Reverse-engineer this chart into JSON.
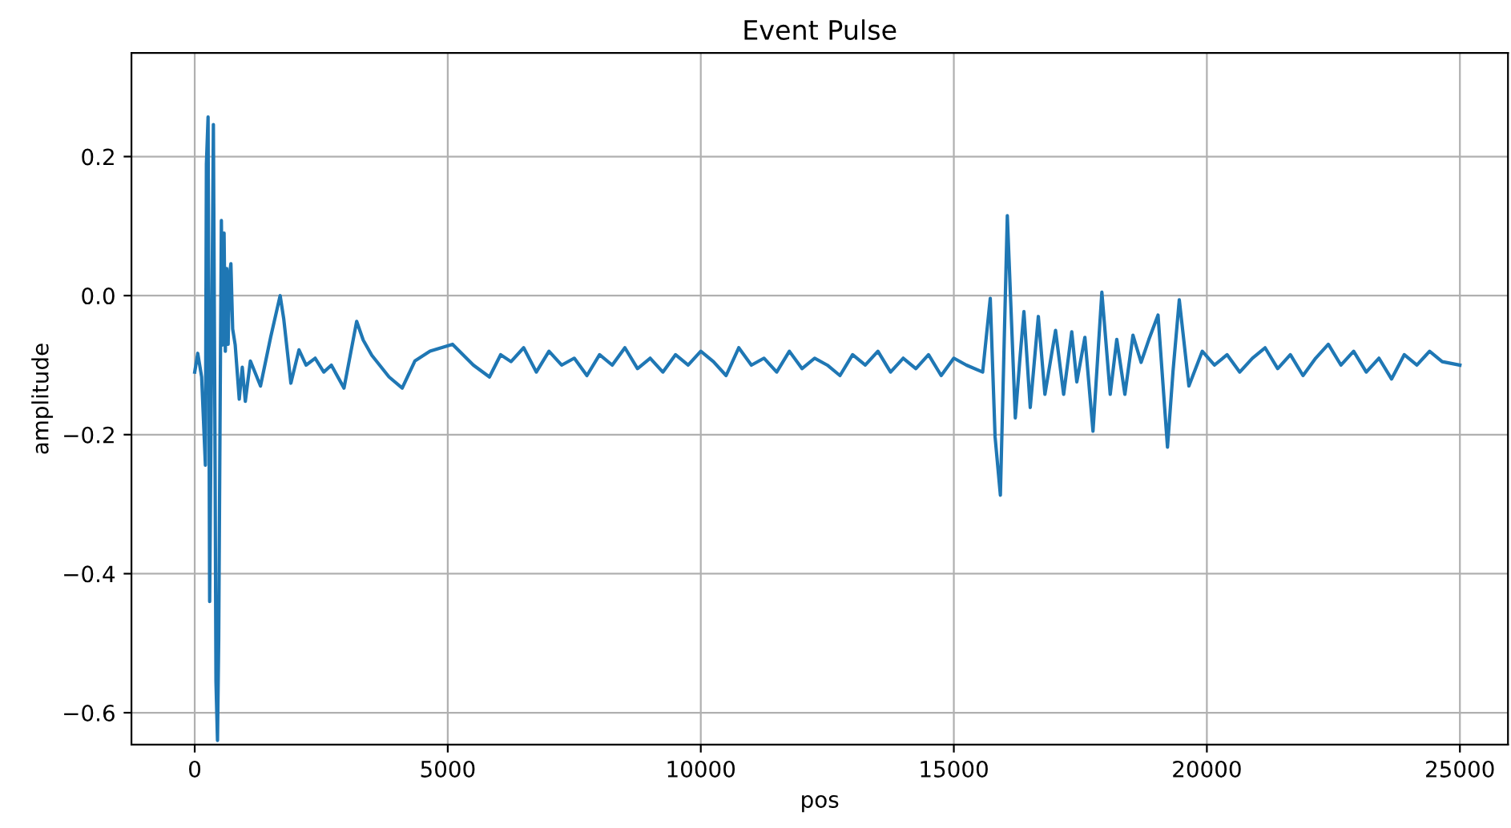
{
  "chart_data": {
    "type": "line",
    "title": "Event Pulse",
    "xlabel": "pos",
    "ylabel": "amplitude",
    "xlim": [
      -1250,
      25950
    ],
    "xticks": [
      0,
      5000,
      10000,
      15000,
      20000,
      25000
    ],
    "ylim": [
      -0.646,
      0.349
    ],
    "yticks": [
      {
        "value": -0.6,
        "label": "−0.6"
      },
      {
        "value": -0.4,
        "label": "−0.4"
      },
      {
        "value": -0.2,
        "label": "−0.2"
      },
      {
        "value": 0.0,
        "label": "0.0"
      },
      {
        "value": 0.2,
        "label": "0.2"
      }
    ],
    "grid": true,
    "series": [
      {
        "color": "#1f77b4",
        "x": [
          0,
          60,
          137,
          211,
          231,
          264,
          295,
          369,
          400,
          420,
          450,
          474,
          500,
          527,
          550,
          580,
          605,
          632,
          660,
          686,
          715,
          750,
          800,
          880,
          940,
          1000,
          1100,
          1300,
          1500,
          1688,
          1760,
          1900,
          2060,
          2200,
          2380,
          2550,
          2700,
          2950,
          3200,
          3330,
          3500,
          3840,
          4100,
          4350,
          4650,
          5095,
          5507,
          5824,
          6045,
          6250,
          6500,
          6750,
          7000,
          7250,
          7500,
          7750,
          8000,
          8250,
          8500,
          8750,
          9000,
          9250,
          9500,
          9750,
          10000,
          10250,
          10500,
          10750,
          11000,
          11250,
          11500,
          11750,
          12000,
          12250,
          12500,
          12750,
          13000,
          13250,
          13500,
          13750,
          14000,
          14250,
          14500,
          14750,
          15000,
          15250,
          15570,
          15720,
          15815,
          15920,
          16057,
          16215,
          16300,
          16385,
          16510,
          16670,
          16800,
          17010,
          17170,
          17330,
          17430,
          17590,
          17750,
          17925,
          18090,
          18220,
          18380,
          18540,
          18700,
          18855,
          19035,
          19222,
          19330,
          19455,
          19645,
          19910,
          20150,
          20400,
          20650,
          20900,
          21150,
          21400,
          21650,
          21900,
          22150,
          22400,
          22650,
          22900,
          23150,
          23400,
          23650,
          23900,
          24150,
          24400,
          24650,
          25000
        ],
        "values": [
          -0.11,
          -0.083,
          -0.117,
          -0.244,
          0.189,
          0.257,
          -0.44,
          0.246,
          -0.2,
          -0.555,
          -0.64,
          -0.495,
          -0.186,
          0.108,
          -0.071,
          0.09,
          -0.08,
          0.039,
          -0.07,
          0.028,
          0.046,
          -0.048,
          -0.071,
          -0.149,
          -0.103,
          -0.152,
          -0.094,
          -0.13,
          -0.06,
          0.0,
          -0.034,
          -0.126,
          -0.078,
          -0.1,
          -0.09,
          -0.11,
          -0.1,
          -0.133,
          -0.037,
          -0.064,
          -0.086,
          -0.117,
          -0.133,
          -0.094,
          -0.08,
          -0.07,
          -0.1,
          -0.117,
          -0.085,
          -0.095,
          -0.075,
          -0.11,
          -0.08,
          -0.1,
          -0.09,
          -0.115,
          -0.085,
          -0.1,
          -0.075,
          -0.105,
          -0.09,
          -0.11,
          -0.085,
          -0.1,
          -0.08,
          -0.095,
          -0.115,
          -0.075,
          -0.1,
          -0.09,
          -0.11,
          -0.08,
          -0.105,
          -0.09,
          -0.1,
          -0.115,
          -0.085,
          -0.1,
          -0.08,
          -0.11,
          -0.09,
          -0.105,
          -0.085,
          -0.115,
          -0.09,
          -0.1,
          -0.11,
          -0.004,
          -0.203,
          -0.287,
          0.115,
          -0.176,
          -0.096,
          -0.023,
          -0.161,
          -0.03,
          -0.142,
          -0.05,
          -0.142,
          -0.052,
          -0.124,
          -0.06,
          -0.195,
          0.005,
          -0.142,
          -0.063,
          -0.142,
          -0.057,
          -0.096,
          -0.063,
          -0.028,
          -0.218,
          -0.11,
          -0.006,
          -0.13,
          -0.08,
          -0.1,
          -0.085,
          -0.11,
          -0.09,
          -0.075,
          -0.105,
          -0.085,
          -0.115,
          -0.09,
          -0.07,
          -0.1,
          -0.08,
          -0.11,
          -0.09,
          -0.12,
          -0.085,
          -0.1,
          -0.08,
          -0.095,
          -0.1
        ]
      }
    ]
  }
}
